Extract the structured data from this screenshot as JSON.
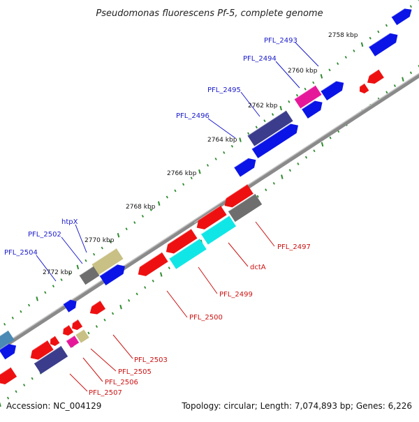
{
  "title": "Pseudomonas fluorescens Pf-5, complete genome",
  "footer": {
    "accession": "Accession: NC_004129",
    "summary": "Topology: circular; Length: 7,074,893 bp; Genes: 6,226"
  },
  "colors": {
    "backbone": "#8a8a8a",
    "tick": "#2e8b2e",
    "label_forward": "#1a1acc",
    "label_reverse": "#cc1111",
    "blue": "#0a14e6",
    "red": "#ee1010",
    "navy": "#3c3c8c",
    "magenta": "#e6189a",
    "khaki": "#c8c084",
    "gray": "#6e6e6e",
    "cyan": "#11e6e6",
    "steel": "#4a8ab4",
    "lightgray": "#aaaaaa"
  },
  "ticks": [
    "2758 kbp",
    "2760 kbp",
    "2762 kbp",
    "2764 kbp",
    "2766 kbp",
    "2768 kbp",
    "2770 kbp",
    "2772 kbp"
  ],
  "genes_forward": [
    {
      "label": "PFL_2493"
    },
    {
      "label": "PFL_2494"
    },
    {
      "label": "PFL_2495"
    },
    {
      "label": "PFL_2496"
    },
    {
      "label": "htpX"
    },
    {
      "label": "PFL_2502"
    },
    {
      "label": "PFL_2504"
    }
  ],
  "genes_reverse": [
    {
      "label": "PFL_2497"
    },
    {
      "label": "dctA"
    },
    {
      "label": "PFL_2499"
    },
    {
      "label": "PFL_2500"
    },
    {
      "label": "PFL_2503"
    },
    {
      "label": "PFL_2505"
    },
    {
      "label": "PFL_2506"
    },
    {
      "label": "PFL_2507"
    }
  ]
}
